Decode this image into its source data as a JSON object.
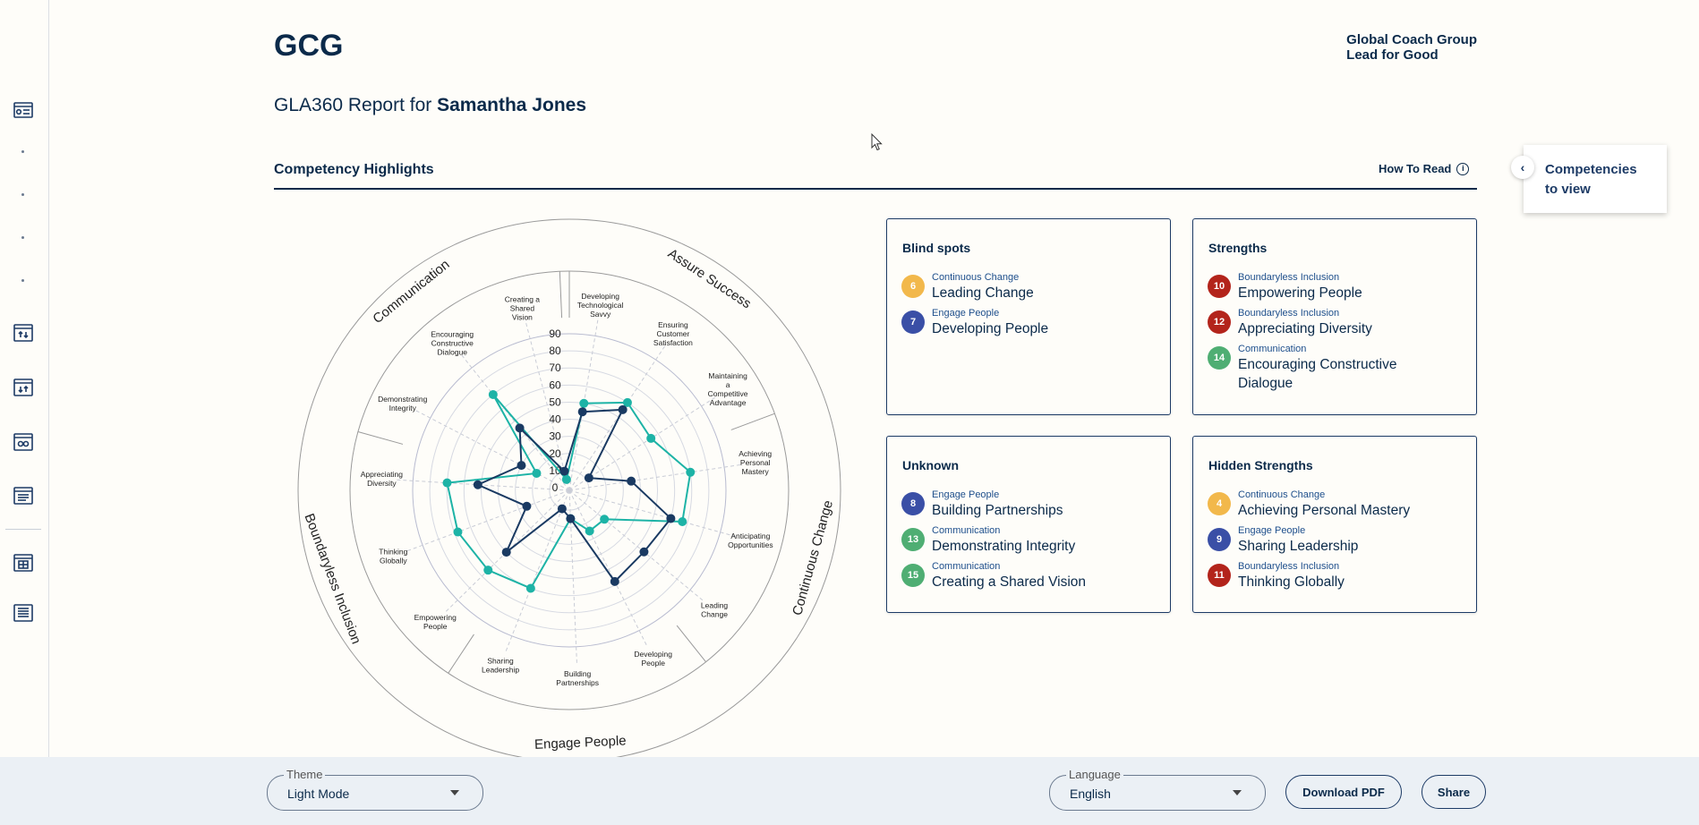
{
  "header": {
    "logo": "GCG",
    "brand_line1": "Global Coach Group",
    "brand_line2": "Lead for Good",
    "report_prefix": "GLA360 Report for ",
    "report_name": "Samantha Jones"
  },
  "section": {
    "title": "Competency Highlights",
    "how_to_read": "How To Read",
    "info_icon_glyph": "i"
  },
  "side_panel": {
    "label": "Competencies to view",
    "chevron": "‹"
  },
  "sidebar": {
    "icons": [
      "dashboard-icon",
      "upload-chart-icon",
      "download-chart-icon",
      "infinity-chart-icon",
      "list-report-icon",
      "table-grid-icon",
      "stacked-list-icon"
    ]
  },
  "chart_data": {
    "type": "radar",
    "categories": [
      "Developing Technological Savvy",
      "Ensuring Customer Satisfaction",
      "Maintaining a Competitive Advantage",
      "Achieving Personal Mastery",
      "Anticipating Opportunities",
      "Leading Change",
      "Developing People",
      "Building Partnerships",
      "Sharing Leadership",
      "Empowering People",
      "Thinking Globally",
      "Appreciating Diversity",
      "Demonstrating Integrity",
      "Encouraging Constructive Dialogue",
      "Creating a Shared Vision"
    ],
    "groups": [
      {
        "name": "Assure Success",
        "from": 0,
        "to": 2
      },
      {
        "name": "Continuous Change",
        "from": 3,
        "to": 5
      },
      {
        "name": "Engage People",
        "from": 6,
        "to": 8
      },
      {
        "name": "Boundaryless Inclusion",
        "from": 9,
        "to": 11
      },
      {
        "name": "Communication",
        "from": 12,
        "to": 14
      }
    ],
    "series": [
      {
        "color": "#1db3a6",
        "values": [
          50,
          60,
          55,
          70,
          67,
          25,
          25,
          15,
          60,
          65,
          68,
          70,
          20,
          70,
          5
        ]
      },
      {
        "color": "#1a3a62",
        "values": [
          45,
          55,
          12,
          35,
          60,
          55,
          58,
          15,
          10,
          50,
          25,
          52,
          30,
          45,
          10
        ]
      }
    ],
    "rlim": [
      0,
      90
    ],
    "ticks": [
      0,
      10,
      20,
      30,
      40,
      50,
      60,
      70,
      80,
      90
    ]
  },
  "cards": {
    "blind_spots": {
      "title": "Blind spots",
      "items": [
        {
          "num": "6",
          "color": "#f2b84b",
          "category": "Continuous Change",
          "name": "Leading Change"
        },
        {
          "num": "7",
          "color": "#3a4fa6",
          "category": "Engage People",
          "name": "Developing People"
        }
      ]
    },
    "strengths": {
      "title": "Strengths",
      "items": [
        {
          "num": "10",
          "color": "#b3241b",
          "category": "Boundaryless Inclusion",
          "name": "Empowering People"
        },
        {
          "num": "12",
          "color": "#b3241b",
          "category": "Boundaryless Inclusion",
          "name": "Appreciating Diversity"
        },
        {
          "num": "14",
          "color": "#4fae73",
          "category": "Communication",
          "name": "Encouraging Constructive Dialogue"
        }
      ]
    },
    "unknown": {
      "title": "Unknown",
      "items": [
        {
          "num": "8",
          "color": "#3a4fa6",
          "category": "Engage People",
          "name": "Building Partnerships"
        },
        {
          "num": "13",
          "color": "#4fae73",
          "category": "Communication",
          "name": "Demonstrating Integrity"
        },
        {
          "num": "15",
          "color": "#4fae73",
          "category": "Communication",
          "name": "Creating a Shared Vision"
        }
      ]
    },
    "hidden_strengths": {
      "title": "Hidden Strengths",
      "items": [
        {
          "num": "4",
          "color": "#f2b84b",
          "category": "Continuous Change",
          "name": "Achieving Personal Mastery"
        },
        {
          "num": "9",
          "color": "#3a4fa6",
          "category": "Engage People",
          "name": "Sharing Leadership"
        },
        {
          "num": "11",
          "color": "#b3241b",
          "category": "Boundaryless Inclusion",
          "name": "Thinking Globally"
        }
      ]
    }
  },
  "footer": {
    "theme_label": "Theme",
    "theme_value": "Light Mode",
    "language_label": "Language",
    "language_value": "English",
    "download_label": "Download PDF",
    "share_label": "Share"
  }
}
